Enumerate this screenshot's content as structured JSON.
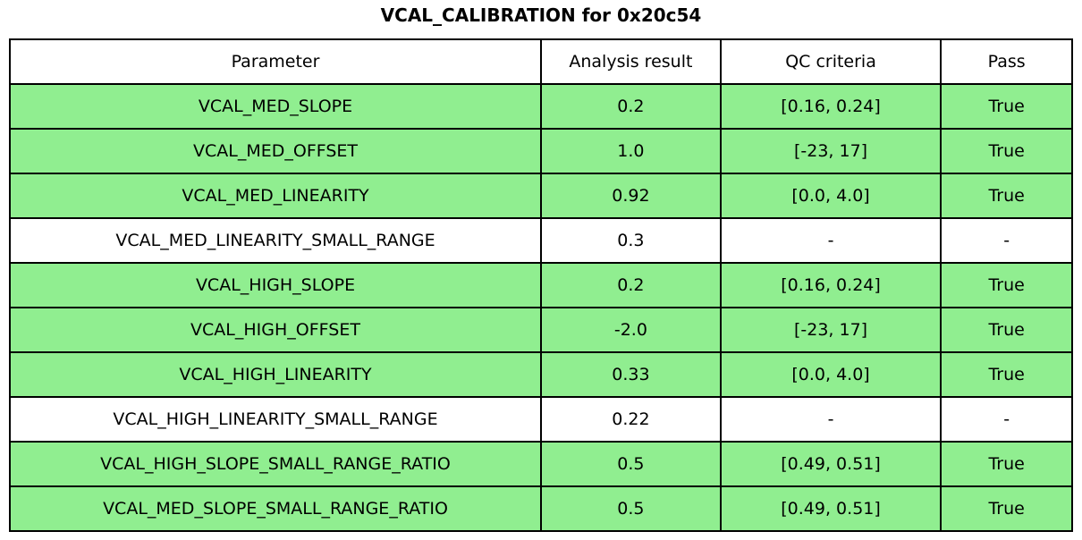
{
  "figure": {
    "title": "VCAL_CALIBRATION for 0x20c54"
  },
  "colors": {
    "pass_row_bg": "#90EE90",
    "neutral_row_bg": "#FFFFFF",
    "border": "#000000",
    "text": "#000000"
  },
  "chart_data": {
    "type": "table",
    "title": "VCAL_CALIBRATION for 0x20c54",
    "columns": [
      "Parameter",
      "Analysis result",
      "QC criteria",
      "Pass"
    ],
    "rows": [
      {
        "parameter": "VCAL_MED_SLOPE",
        "analysis_result": "0.2",
        "qc_criteria": "[0.16, 0.24]",
        "pass": "True",
        "highlighted": true
      },
      {
        "parameter": "VCAL_MED_OFFSET",
        "analysis_result": "1.0",
        "qc_criteria": "[-23, 17]",
        "pass": "True",
        "highlighted": true
      },
      {
        "parameter": "VCAL_MED_LINEARITY",
        "analysis_result": "0.92",
        "qc_criteria": "[0.0, 4.0]",
        "pass": "True",
        "highlighted": true
      },
      {
        "parameter": "VCAL_MED_LINEARITY_SMALL_RANGE",
        "analysis_result": "0.3",
        "qc_criteria": "-",
        "pass": "-",
        "highlighted": false
      },
      {
        "parameter": "VCAL_HIGH_SLOPE",
        "analysis_result": "0.2",
        "qc_criteria": "[0.16, 0.24]",
        "pass": "True",
        "highlighted": true
      },
      {
        "parameter": "VCAL_HIGH_OFFSET",
        "analysis_result": "-2.0",
        "qc_criteria": "[-23, 17]",
        "pass": "True",
        "highlighted": true
      },
      {
        "parameter": "VCAL_HIGH_LINEARITY",
        "analysis_result": "0.33",
        "qc_criteria": "[0.0, 4.0]",
        "pass": "True",
        "highlighted": true
      },
      {
        "parameter": "VCAL_HIGH_LINEARITY_SMALL_RANGE",
        "analysis_result": "0.22",
        "qc_criteria": "-",
        "pass": "-",
        "highlighted": false
      },
      {
        "parameter": "VCAL_HIGH_SLOPE_SMALL_RANGE_RATIO",
        "analysis_result": "0.5",
        "qc_criteria": "[0.49, 0.51]",
        "pass": "True",
        "highlighted": true
      },
      {
        "parameter": "VCAL_MED_SLOPE_SMALL_RANGE_RATIO",
        "analysis_result": "0.5",
        "qc_criteria": "[0.49, 0.51]",
        "pass": "True",
        "highlighted": true
      }
    ]
  }
}
